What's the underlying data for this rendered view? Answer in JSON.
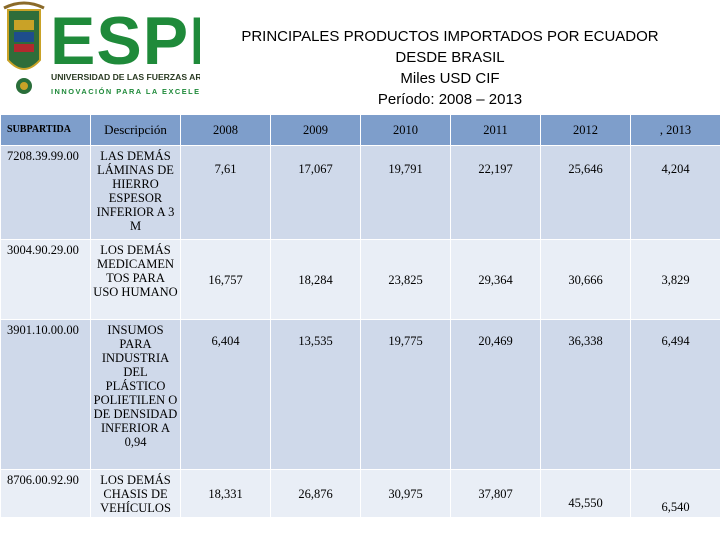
{
  "logo": {
    "text": "ESPE",
    "subtitle": "UNIVERSIDAD DE LAS FUERZAS ARMADAS",
    "tagline": "INNOVACIÓN PARA LA EXCELENCIA",
    "colors": {
      "green": "#1f8a3a",
      "dark": "#2a3a22",
      "gold": "#c9a227"
    }
  },
  "title": {
    "line1": "PRINCIPALES PRODUCTOS IMPORTADOS  POR ECUADOR",
    "line2": "DESDE BRASIL",
    "line3": "Miles USD CIF",
    "line4": "Período: 2008 – 2013"
  },
  "table": {
    "headers": [
      "SUBPARTIDA",
      "Descripción",
      "2008",
      "2009",
      "2010",
      "2011",
      "2012",
      ",  2013"
    ],
    "rows": [
      {
        "code": "7208.39.99.00",
        "desc": "LAS DEMÁS LÁMINAS DE HIERRO ESPESOR INFERIOR A 3 M",
        "values": [
          "7,61",
          "17,067",
          "19,791",
          "22,197",
          "25,646",
          "4,204"
        ]
      },
      {
        "code": "3004.90.29.00",
        "desc": "LOS DEMÁS MEDICAMEN TOS PARA USO HUMANO",
        "values": [
          "16,757",
          "18,284",
          "23,825",
          "29,364",
          "30,666",
          "3,829"
        ]
      },
      {
        "code": "3901.10.00.00",
        "desc": "INSUMOS PARA INDUSTRIA DEL PLÁSTICO POLIETILEN O DE DENSIDAD INFERIOR A 0,94",
        "values": [
          "6,404",
          "13,535",
          "19,775",
          "20,469",
          "36,338",
          "6,494"
        ]
      },
      {
        "code": "8706.00.92.90",
        "desc": "LOS DEMÁS CHASIS DE VEHÍCULOS",
        "values": [
          "18,331",
          "26,876",
          "30,975",
          "37,807",
          "45,550",
          "6,540"
        ]
      }
    ]
  }
}
